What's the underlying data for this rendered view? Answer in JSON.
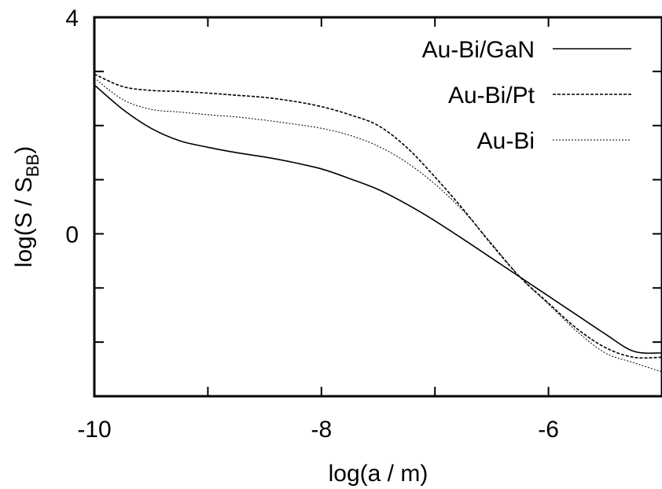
{
  "chart_data": {
    "type": "line",
    "title": "",
    "xlabel": "log(a / m)",
    "ylabel": {
      "main": "log(S / S",
      "subscript": "BB",
      "close": ")"
    },
    "xlim": [
      -10,
      -5
    ],
    "ylim": [
      -3,
      4
    ],
    "x_ticks": [
      -10,
      -9,
      -8,
      -7,
      -6,
      -5
    ],
    "x_tick_labels": [
      "-10",
      "",
      "-8",
      "",
      "-6",
      ""
    ],
    "y_ticks": [
      -3,
      -2,
      -1,
      0,
      1,
      2,
      3,
      4
    ],
    "y_tick_labels": [
      "",
      "",
      "",
      "0",
      "",
      "",
      "",
      "4"
    ],
    "grid": false,
    "legend_position": "top-right",
    "series": [
      {
        "name": "Au-Bi/GaN",
        "line_style": "solid",
        "x": [
          -10,
          -9.75,
          -9.5,
          -9.25,
          -9,
          -8.75,
          -8.5,
          -8.25,
          -8,
          -7.75,
          -7.5,
          -7.25,
          -7,
          -6.75,
          -6.5,
          -6.25,
          -6,
          -5.75,
          -5.5,
          -5.25,
          -5
        ],
        "y": [
          2.75,
          2.3,
          1.95,
          1.72,
          1.6,
          1.5,
          1.42,
          1.32,
          1.2,
          1.02,
          0.82,
          0.55,
          0.24,
          -0.1,
          -0.45,
          -0.8,
          -1.15,
          -1.5,
          -1.85,
          -2.17,
          -2.2
        ]
      },
      {
        "name": "Au-Bi/Pt",
        "line_style": "dashed",
        "x": [
          -10,
          -9.75,
          -9.5,
          -9.25,
          -9,
          -8.75,
          -8.5,
          -8.25,
          -8,
          -7.75,
          -7.5,
          -7.25,
          -7,
          -6.75,
          -6.5,
          -6.25,
          -6,
          -5.75,
          -5.5,
          -5.25,
          -5
        ],
        "y": [
          2.95,
          2.72,
          2.65,
          2.63,
          2.6,
          2.56,
          2.52,
          2.45,
          2.35,
          2.2,
          2.0,
          1.6,
          1.05,
          0.45,
          -0.2,
          -0.8,
          -1.28,
          -1.75,
          -2.1,
          -2.28,
          -2.28
        ]
      },
      {
        "name": "Au-Bi",
        "line_style": "dotted",
        "x": [
          -10,
          -9.75,
          -9.5,
          -9.25,
          -9,
          -8.75,
          -8.5,
          -8.25,
          -8,
          -7.75,
          -7.5,
          -7.25,
          -7,
          -6.75,
          -6.5,
          -6.25,
          -6,
          -5.75,
          -5.5,
          -5.25,
          -5
        ],
        "y": [
          2.88,
          2.48,
          2.3,
          2.25,
          2.2,
          2.16,
          2.1,
          2.03,
          1.95,
          1.82,
          1.62,
          1.32,
          0.92,
          0.42,
          -0.18,
          -0.8,
          -1.3,
          -1.8,
          -2.2,
          -2.38,
          -2.55
        ]
      }
    ]
  }
}
